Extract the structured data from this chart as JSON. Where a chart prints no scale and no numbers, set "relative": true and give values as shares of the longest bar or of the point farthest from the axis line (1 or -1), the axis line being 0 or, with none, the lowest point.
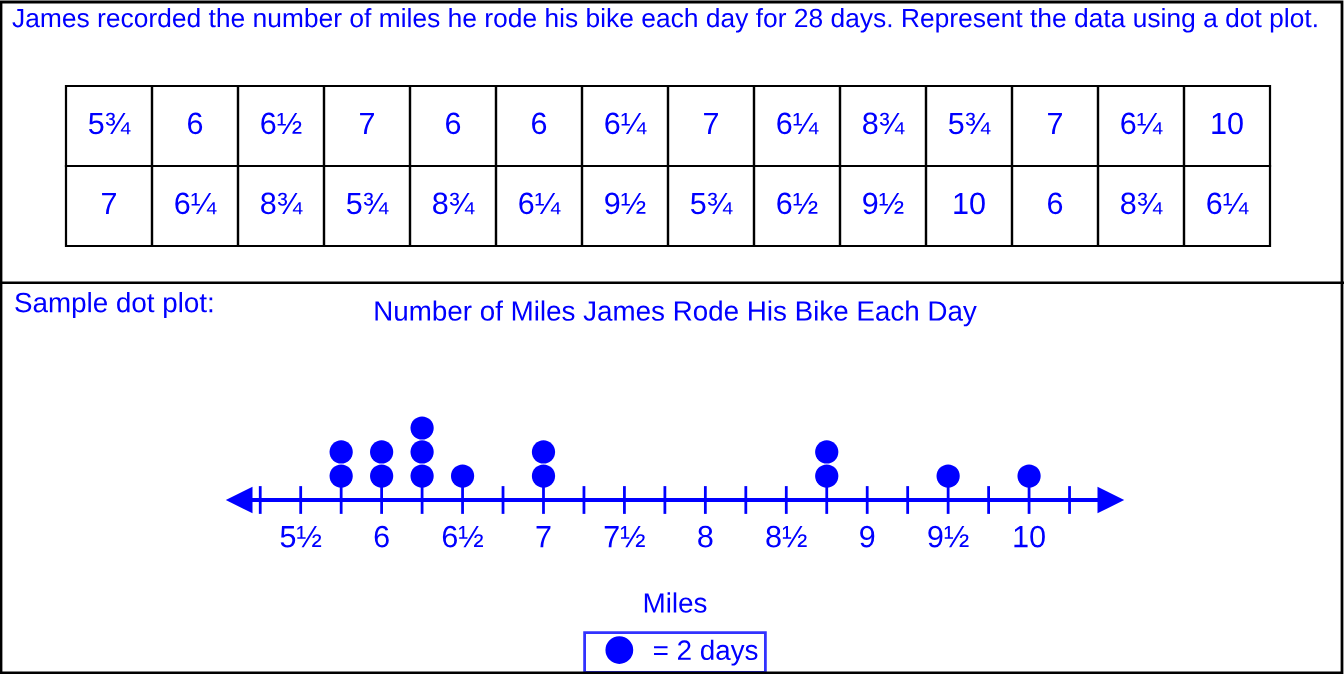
{
  "chart_data": [
    {
      "type": "other",
      "title": "James recorded the number of miles he rode his bike each day for 28 days. Represent the data using a dot plot.",
      "annotations": [
        "5¾",
        "6",
        "6½",
        "7",
        "6",
        "6",
        "6¼",
        "7",
        "6¼",
        "8¾",
        "5¾",
        "7",
        "6¼",
        "10",
        "7",
        "6¼",
        "8¾",
        "5¾",
        "8¾",
        "6¼",
        "9½",
        "5¾",
        "6½",
        "9½",
        "10",
        "6",
        "8¾",
        "6¼"
      ]
    },
    {
      "type": "scatter",
      "title": "Number of Miles James Rode His Bike Each Day",
      "xlabel": "Miles",
      "annotations": [
        "Sample dot plot:"
      ],
      "relative": true,
      "marker": "circle",
      "legend": "bottom",
      "xlim": [
        5.125,
        10.5
      ],
      "xticks": [
        {
          "value": 5.25,
          "label": null
        },
        {
          "value": 5.5,
          "label": "5½"
        },
        {
          "value": 5.75,
          "label": null
        },
        6,
        {
          "value": 6.25,
          "label": null
        },
        {
          "value": 6.5,
          "label": "6½"
        },
        {
          "value": 6.75,
          "label": null
        },
        7,
        {
          "value": 7.25,
          "label": null
        },
        {
          "value": 7.5,
          "label": "7½"
        },
        {
          "value": 7.75,
          "label": null
        },
        8,
        {
          "value": 8.25,
          "label": null
        },
        {
          "value": 8.5,
          "label": "8½"
        },
        {
          "value": 8.75,
          "label": null
        },
        9,
        {
          "value": 9.25,
          "label": null
        },
        {
          "value": 9.5,
          "label": "9½"
        },
        {
          "value": 9.75,
          "label": null
        },
        10,
        {
          "value": 10.25,
          "label": null
        }
      ],
      "series": [
        {
          "name": "= 2 days",
          "color": "#0000ff",
          "x": [
            5.75,
            5.75,
            6,
            6,
            6.25,
            6.25,
            6.25,
            6.5,
            7,
            7,
            8.75,
            8.75,
            9.5,
            10
          ],
          "values": [
            0.333,
            0.667,
            0.333,
            0.667,
            0.333,
            0.667,
            1,
            0.333,
            0.333,
            0.667,
            0.333,
            0.667,
            0.333,
            0.333
          ]
        }
      ]
    }
  ]
}
